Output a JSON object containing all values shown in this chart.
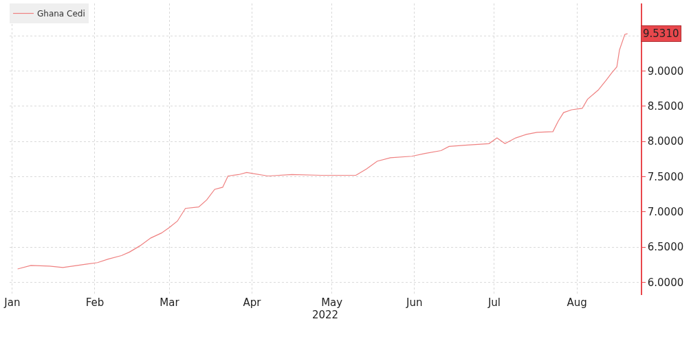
{
  "chart_data": {
    "type": "line",
    "x": [
      "2022-01-03",
      "2022-01-08",
      "2022-01-15",
      "2022-01-20",
      "2022-01-29",
      "2022-02-02",
      "2022-02-06",
      "2022-02-11",
      "2022-02-14",
      "2022-02-18",
      "2022-02-22",
      "2022-02-26",
      "2022-03-01",
      "2022-03-04",
      "2022-03-07",
      "2022-03-12",
      "2022-03-15",
      "2022-03-18",
      "2022-03-21",
      "2022-03-23",
      "2022-03-27",
      "2022-03-30",
      "2022-04-07",
      "2022-04-16",
      "2022-04-27",
      "2022-05-10",
      "2022-05-14",
      "2022-05-18",
      "2022-05-23",
      "2022-05-31",
      "2022-06-05",
      "2022-06-11",
      "2022-06-14",
      "2022-06-21",
      "2022-06-29",
      "2022-07-02",
      "2022-07-05",
      "2022-07-09",
      "2022-07-13",
      "2022-07-17",
      "2022-07-23",
      "2022-07-25",
      "2022-07-27",
      "2022-07-30",
      "2022-08-03",
      "2022-08-05",
      "2022-08-09",
      "2022-08-12",
      "2022-08-14",
      "2022-08-16",
      "2022-08-17",
      "2022-08-19",
      "2022-08-20"
    ],
    "series": [
      {
        "name": "Ghana Cedi",
        "color": "#ef8080",
        "values": [
          6.19,
          6.24,
          6.23,
          6.21,
          6.26,
          6.28,
          6.33,
          6.38,
          6.43,
          6.52,
          6.63,
          6.7,
          6.78,
          6.87,
          7.05,
          7.07,
          7.17,
          7.32,
          7.35,
          7.51,
          7.53,
          7.56,
          7.51,
          7.53,
          7.52,
          7.52,
          7.61,
          7.72,
          7.77,
          7.79,
          7.83,
          7.87,
          7.93,
          7.95,
          7.97,
          8.05,
          7.97,
          8.05,
          8.1,
          8.13,
          8.14,
          8.29,
          8.41,
          8.45,
          8.47,
          8.6,
          8.73,
          8.87,
          8.97,
          9.06,
          9.3,
          9.52,
          9.53
        ]
      }
    ],
    "xlim": [
      "2021-12-31",
      "2022-08-25"
    ],
    "xticks": [
      {
        "value": "2022-01-01",
        "label": "Jan"
      },
      {
        "value": "2022-02-01",
        "label": "Feb"
      },
      {
        "value": "2022-03-01",
        "label": "Mar"
      },
      {
        "value": "2022-04-01",
        "label": "Apr"
      },
      {
        "value": "2022-05-01",
        "label": "May"
      },
      {
        "value": "2022-06-01",
        "label": "Jun"
      },
      {
        "value": "2022-07-01",
        "label": "Jul"
      },
      {
        "value": "2022-08-01",
        "label": "Aug"
      }
    ],
    "xlabel": "2022",
    "ylim": [
      5.82,
      9.96
    ],
    "yticks": [
      {
        "value": 6,
        "label": "6.0000"
      },
      {
        "value": 6.5,
        "label": "6.5000"
      },
      {
        "value": 7,
        "label": "7.0000"
      },
      {
        "value": 7.5,
        "label": "7.5000"
      },
      {
        "value": 8,
        "label": "8.0000"
      },
      {
        "value": 8.5,
        "label": "8.5000"
      },
      {
        "value": 9,
        "label": "9.0000"
      },
      {
        "value": 9.5,
        "label": null
      }
    ],
    "annotations": [
      "9.5310"
    ],
    "grid": true,
    "legend": "top left",
    "marker": "none",
    "line_style": "solid"
  }
}
